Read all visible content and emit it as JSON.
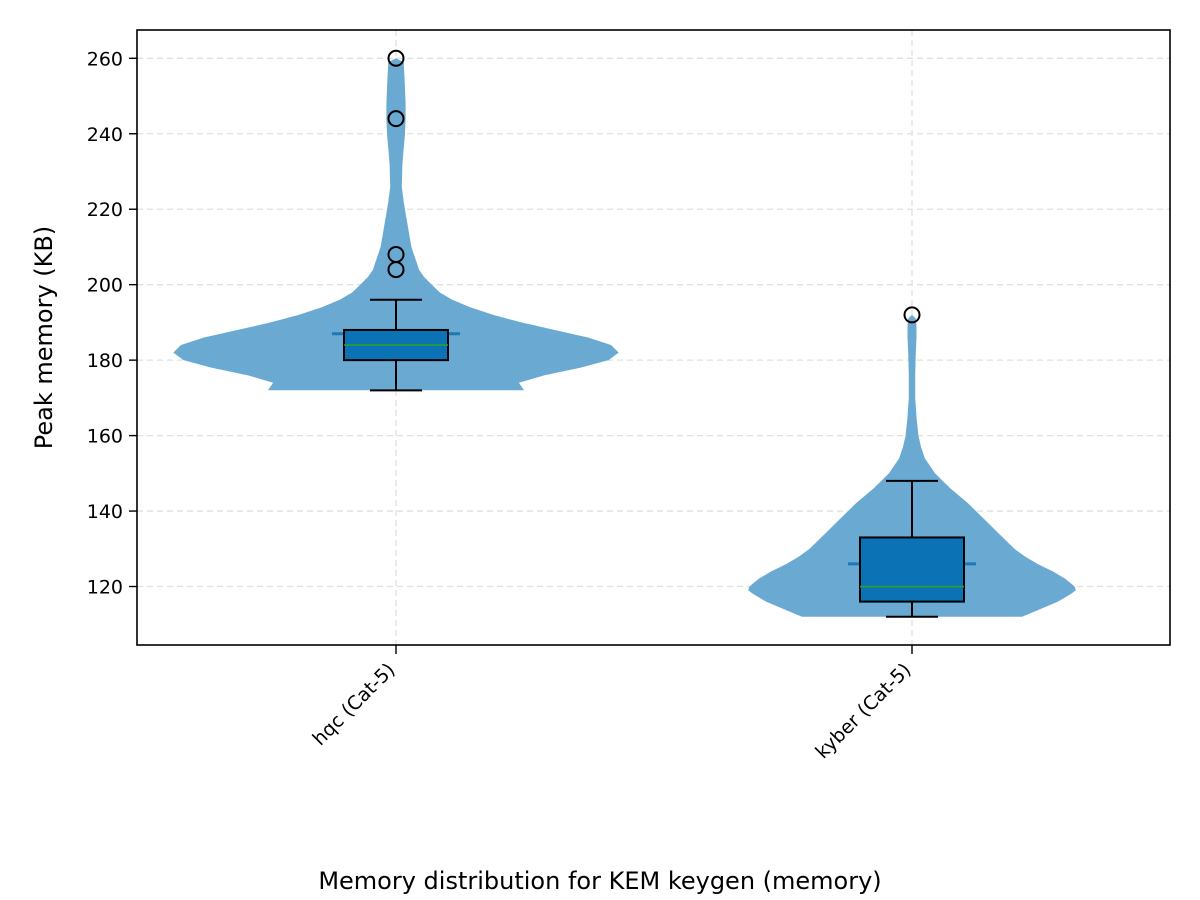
{
  "chart_data": {
    "type": "violin",
    "title": "",
    "caption": "Memory distribution for KEM keygen (memory)",
    "xlabel": "",
    "ylabel": "Peak memory (KB)",
    "ylim": [
      104.5,
      267.5
    ],
    "y_ticks": [
      120,
      140,
      160,
      180,
      200,
      220,
      240,
      260
    ],
    "y_tick_labels": [
      "120",
      "140",
      "160",
      "180",
      "200",
      "220",
      "240",
      "260"
    ],
    "grid": true,
    "categories": [
      "hqc (Cat-5)",
      "kyber (Cat-5)"
    ],
    "series": [
      {
        "category": "hqc (Cat-5)",
        "min": 172,
        "max": 260,
        "mean": 187,
        "q1": 180,
        "median": 184,
        "q3": 188,
        "whisker_low": 172,
        "whisker_high": 196,
        "outliers": [
          204,
          208,
          244,
          260
        ],
        "density_profile": [
          [
            172,
            1.0
          ],
          [
            174,
            0.96
          ],
          [
            176,
            1.16
          ],
          [
            178,
            1.44
          ],
          [
            180,
            1.66
          ],
          [
            182,
            1.74
          ],
          [
            184,
            1.68
          ],
          [
            186,
            1.5
          ],
          [
            188,
            1.24
          ],
          [
            190,
            0.98
          ],
          [
            192,
            0.76
          ],
          [
            194,
            0.58
          ],
          [
            196,
            0.44
          ],
          [
            198,
            0.34
          ],
          [
            200,
            0.28
          ],
          [
            202,
            0.22
          ],
          [
            204,
            0.18
          ],
          [
            206,
            0.16
          ],
          [
            208,
            0.14
          ],
          [
            210,
            0.12
          ],
          [
            214,
            0.1
          ],
          [
            218,
            0.08
          ],
          [
            222,
            0.06
          ],
          [
            226,
            0.045
          ],
          [
            232,
            0.05
          ],
          [
            236,
            0.06
          ],
          [
            240,
            0.07
          ],
          [
            244,
            0.075
          ],
          [
            248,
            0.075
          ],
          [
            252,
            0.07
          ],
          [
            256,
            0.065
          ],
          [
            259,
            0.06
          ],
          [
            260,
            0.0
          ]
        ]
      },
      {
        "category": "kyber (Cat-5)",
        "min": 112,
        "max": 192,
        "mean": 126,
        "q1": 116,
        "median": 120,
        "q3": 133,
        "whisker_low": 112,
        "whisker_high": 148,
        "outliers": [
          192
        ],
        "density_profile": [
          [
            112,
            0.86
          ],
          [
            114,
            1.0
          ],
          [
            116,
            1.14
          ],
          [
            118,
            1.24
          ],
          [
            119,
            1.28
          ],
          [
            120,
            1.27
          ],
          [
            122,
            1.2
          ],
          [
            124,
            1.1
          ],
          [
            126,
            0.98
          ],
          [
            128,
            0.88
          ],
          [
            130,
            0.8
          ],
          [
            132,
            0.74
          ],
          [
            134,
            0.68
          ],
          [
            136,
            0.62
          ],
          [
            138,
            0.56
          ],
          [
            140,
            0.5
          ],
          [
            142,
            0.44
          ],
          [
            144,
            0.37
          ],
          [
            146,
            0.3
          ],
          [
            148,
            0.24
          ],
          [
            150,
            0.18
          ],
          [
            152,
            0.14
          ],
          [
            154,
            0.1
          ],
          [
            157,
            0.07
          ],
          [
            160,
            0.05
          ],
          [
            165,
            0.035
          ],
          [
            170,
            0.025
          ],
          [
            176,
            0.025
          ],
          [
            182,
            0.03
          ],
          [
            186,
            0.035
          ],
          [
            189,
            0.035
          ],
          [
            191,
            0.03
          ],
          [
            192,
            0.0
          ]
        ]
      }
    ],
    "colors": {
      "violin_fill": "#6aaad2",
      "box_fill": "#0a72b5",
      "box_edge": "#000000",
      "median_line": "#2ca02c",
      "mean_marker": "#1f77b4",
      "grid": "#e0e0e0",
      "axes": "#000000"
    }
  }
}
